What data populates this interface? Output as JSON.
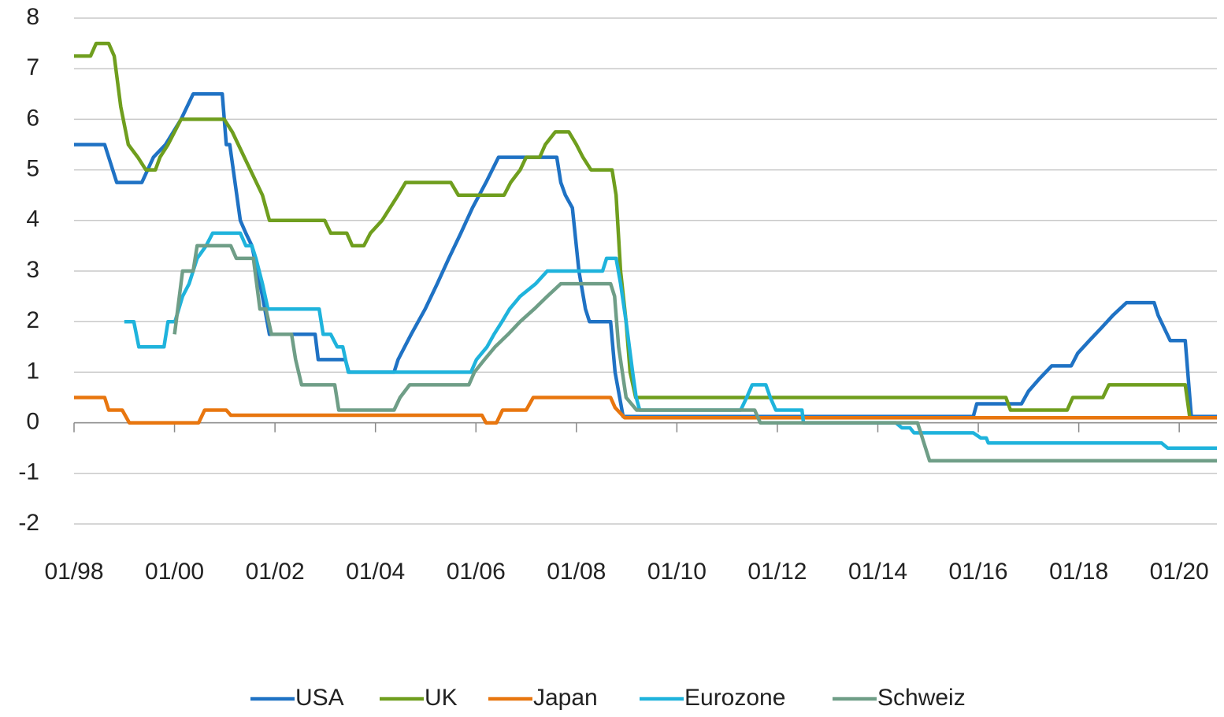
{
  "chart_data": {
    "type": "line",
    "xlim": [
      1998,
      2020.75
    ],
    "ylim": [
      -2,
      8
    ],
    "yticks": [
      -2,
      -1,
      0,
      1,
      2,
      3,
      4,
      5,
      6,
      7,
      8
    ],
    "xticks": [
      {
        "value": 1998,
        "label": "01/98"
      },
      {
        "value": 2000,
        "label": "01/00"
      },
      {
        "value": 2002,
        "label": "01/02"
      },
      {
        "value": 2004,
        "label": "01/04"
      },
      {
        "value": 2006,
        "label": "01/06"
      },
      {
        "value": 2008,
        "label": "01/08"
      },
      {
        "value": 2010,
        "label": "01/10"
      },
      {
        "value": 2012,
        "label": "01/12"
      },
      {
        "value": 2014,
        "label": "01/14"
      },
      {
        "value": 2016,
        "label": "01/16"
      },
      {
        "value": 2018,
        "label": "01/18"
      },
      {
        "value": 2020,
        "label": "01/20"
      }
    ],
    "grid": true,
    "legend": "bottom",
    "series": [
      {
        "name": "USA",
        "color": "#1f72c4",
        "x": [
          1998.0,
          1998.61,
          1998.85,
          1999.35,
          1999.58,
          1999.82,
          2000.13,
          2000.37,
          2000.95,
          2001.03,
          2001.1,
          2001.31,
          2001.42,
          2001.54,
          2001.75,
          2001.89,
          2002.8,
          2002.86,
          2003.4,
          2003.47,
          2004.37,
          2004.45,
          2004.71,
          2004.99,
          2005.23,
          2005.46,
          2005.7,
          2005.93,
          2006.2,
          2006.45,
          2007.61,
          2007.69,
          2007.78,
          2007.92,
          2008.05,
          2008.18,
          2008.26,
          2008.68,
          2008.77,
          2008.93,
          2015.9,
          2015.97,
          2016.86,
          2017.0,
          2017.22,
          2017.46,
          2017.85,
          2017.98,
          2018.21,
          2018.45,
          2018.68,
          2018.95,
          2019.5,
          2019.58,
          2019.82,
          2020.12,
          2020.24,
          2020.75
        ],
        "values": [
          5.5,
          5.5,
          4.75,
          4.75,
          5.25,
          5.5,
          6.0,
          6.5,
          6.5,
          5.5,
          5.5,
          4.0,
          3.75,
          3.5,
          2.5,
          1.75,
          1.75,
          1.25,
          1.25,
          1.0,
          1.0,
          1.25,
          1.75,
          2.25,
          2.75,
          3.25,
          3.75,
          4.25,
          4.75,
          5.25,
          5.25,
          4.75,
          4.5,
          4.25,
          3.0,
          2.25,
          2.0,
          2.0,
          1.0,
          0.125,
          0.125,
          0.375,
          0.375,
          0.625,
          0.875,
          1.125,
          1.125,
          1.375,
          1.625,
          1.875,
          2.125,
          2.375,
          2.375,
          2.125,
          1.625,
          1.625,
          0.125,
          0.125
        ]
      },
      {
        "name": "UK",
        "color": "#6f9e1e",
        "x": [
          1998.0,
          1998.33,
          1998.44,
          1998.69,
          1998.8,
          1998.93,
          1999.08,
          1999.27,
          1999.43,
          1999.62,
          1999.71,
          1999.87,
          2000.13,
          2000.99,
          2001.15,
          2001.39,
          2001.75,
          2001.89,
          2002.99,
          2003.11,
          2003.43,
          2003.54,
          2003.77,
          2003.9,
          2004.13,
          2004.45,
          2004.6,
          2005.5,
          2005.65,
          2006.56,
          2006.69,
          2006.88,
          2007.0,
          2007.27,
          2007.38,
          2007.58,
          2007.85,
          2008.0,
          2008.13,
          2008.29,
          2008.71,
          2008.79,
          2008.88,
          2008.99,
          2009.07,
          2009.18,
          2016.55,
          2016.64,
          2017.77,
          2017.88,
          2018.48,
          2018.6,
          2020.12,
          2020.21,
          2020.75
        ],
        "values": [
          7.25,
          7.25,
          7.5,
          7.5,
          7.25,
          6.25,
          5.5,
          5.25,
          5.0,
          5.0,
          5.25,
          5.5,
          6.0,
          6.0,
          5.75,
          5.25,
          4.5,
          4.0,
          4.0,
          3.75,
          3.75,
          3.5,
          3.5,
          3.75,
          4.0,
          4.5,
          4.75,
          4.75,
          4.5,
          4.5,
          4.75,
          5.0,
          5.25,
          5.25,
          5.5,
          5.75,
          5.75,
          5.5,
          5.25,
          5.0,
          5.0,
          4.5,
          3.0,
          2.0,
          1.0,
          0.5,
          0.5,
          0.25,
          0.25,
          0.5,
          0.5,
          0.75,
          0.75,
          0.1,
          0.1
        ]
      },
      {
        "name": "Japan",
        "color": "#e8760f",
        "x": [
          1998.0,
          1998.61,
          1998.69,
          1998.96,
          1999.1,
          2000.48,
          2000.6,
          2001.03,
          2001.12,
          2006.12,
          2006.2,
          2006.41,
          2006.53,
          2007.0,
          2007.14,
          2008.68,
          2008.77,
          2008.96,
          2020.75
        ],
        "values": [
          0.5,
          0.5,
          0.25,
          0.25,
          0.0,
          0.0,
          0.25,
          0.25,
          0.15,
          0.15,
          0.0,
          0.0,
          0.25,
          0.25,
          0.5,
          0.5,
          0.3,
          0.1,
          0.1
        ]
      },
      {
        "name": "Eurozone",
        "color": "#1fb3dc",
        "x": [
          1999.0,
          1999.19,
          1999.29,
          1999.79,
          1999.87,
          2000.01,
          2000.16,
          2000.29,
          2000.45,
          2000.63,
          2000.76,
          2001.31,
          2001.42,
          2001.54,
          2001.62,
          2001.75,
          2001.86,
          2002.88,
          2002.96,
          2003.11,
          2003.24,
          2003.35,
          2003.46,
          2005.9,
          2006.01,
          2006.22,
          2006.36,
          2006.52,
          2006.67,
          2006.88,
          2007.19,
          2007.42,
          2008.52,
          2008.6,
          2008.79,
          2008.88,
          2008.99,
          2009.12,
          2009.19,
          2009.26,
          2011.27,
          2011.39,
          2011.5,
          2011.77,
          2011.86,
          2011.97,
          2012.49,
          2012.52,
          2014.36,
          2014.48,
          2014.64,
          2014.72,
          2015.9,
          2016.05,
          2016.16,
          2016.2,
          2019.65,
          2019.77,
          2020.75
        ],
        "values": [
          2.0,
          2.0,
          1.5,
          1.5,
          2.0,
          2.0,
          2.5,
          2.75,
          3.25,
          3.5,
          3.75,
          3.75,
          3.5,
          3.5,
          3.25,
          2.75,
          2.25,
          2.25,
          1.75,
          1.75,
          1.5,
          1.5,
          1.0,
          1.0,
          1.25,
          1.5,
          1.75,
          2.0,
          2.25,
          2.5,
          2.75,
          3.0,
          3.0,
          3.25,
          3.25,
          2.75,
          2.0,
          1.0,
          0.5,
          0.25,
          0.25,
          0.5,
          0.75,
          0.75,
          0.5,
          0.25,
          0.25,
          0.0,
          0.0,
          -0.1,
          -0.1,
          -0.2,
          -0.2,
          -0.3,
          -0.3,
          -0.4,
          -0.4,
          -0.5,
          -0.5
        ]
      },
      {
        "name": "Schweiz",
        "color": "#6f9e87",
        "x": [
          2000.0,
          2000.16,
          2000.37,
          2000.45,
          2001.12,
          2001.23,
          2001.57,
          2001.7,
          2001.82,
          2001.93,
          2002.33,
          2002.41,
          2002.53,
          2003.19,
          2003.27,
          2004.37,
          2004.49,
          2004.68,
          2005.86,
          2005.97,
          2006.17,
          2006.38,
          2006.64,
          2006.88,
          2007.16,
          2007.42,
          2007.69,
          2008.68,
          2008.76,
          2008.84,
          2008.99,
          2009.2,
          2011.55,
          2011.66,
          2014.79,
          2015.03,
          2020.75
        ],
        "values": [
          1.75,
          3.0,
          3.0,
          3.5,
          3.5,
          3.25,
          3.25,
          2.25,
          2.25,
          1.75,
          1.75,
          1.25,
          0.75,
          0.75,
          0.25,
          0.25,
          0.5,
          0.75,
          0.75,
          1.0,
          1.25,
          1.5,
          1.75,
          2.0,
          2.25,
          2.5,
          2.75,
          2.75,
          2.5,
          1.5,
          0.5,
          0.25,
          0.25,
          0.0,
          0.0,
          -0.75,
          -0.75
        ]
      }
    ]
  }
}
